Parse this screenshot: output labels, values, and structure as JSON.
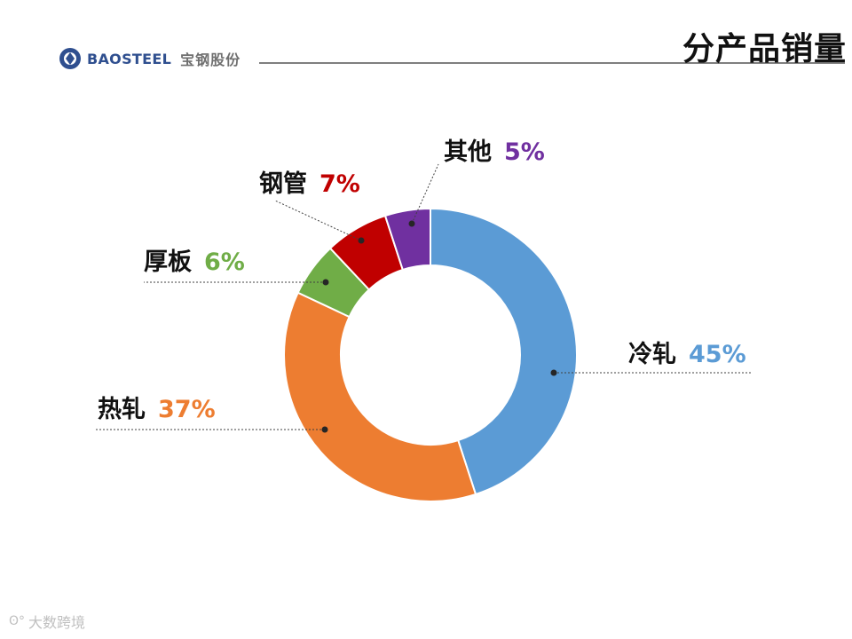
{
  "header": {
    "logo_text": "BAOSTEEL",
    "logo_cn": "宝钢股份",
    "title": "分产品销量"
  },
  "colors": {
    "冷轧": "#5b9bd5",
    "热轧": "#ed7d31",
    "厚板": "#70ad47",
    "钢管": "#c00000",
    "其他": "#7030a0"
  },
  "chart_data": {
    "type": "pie",
    "donut": true,
    "categories": [
      "冷轧",
      "热轧",
      "厚板",
      "钢管",
      "其他"
    ],
    "values": [
      45,
      37,
      6,
      7,
      5
    ],
    "labels": [
      "冷轧",
      "热轧",
      "厚板",
      "钢管",
      "其他"
    ],
    "value_labels": [
      "45%",
      "37%",
      "6%",
      "7%",
      "5%"
    ]
  },
  "watermark": {
    "text": "大数跨境",
    "icon": "kaola-icon"
  }
}
